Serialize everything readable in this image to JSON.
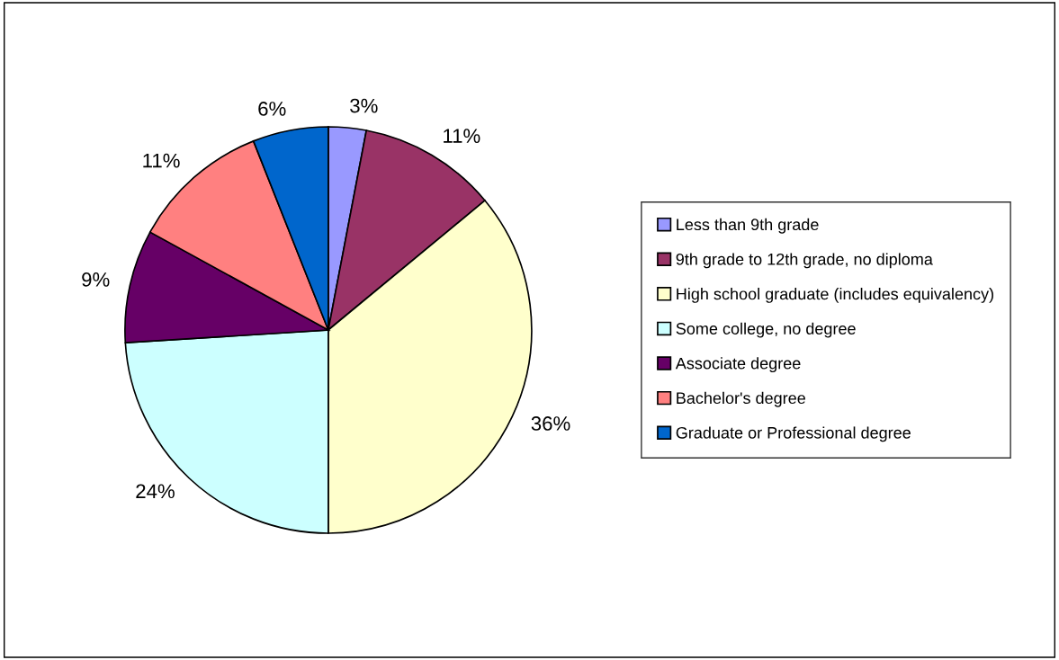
{
  "chart_data": {
    "type": "pie",
    "categories": [
      "Less than 9th grade",
      "9th grade to 12th grade, no diploma",
      "High school graduate (includes equivalency)",
      "Some college, no degree",
      "Associate degree",
      "Bachelor's degree",
      "Graduate or Professional degree"
    ],
    "values": [
      3,
      11,
      36,
      24,
      9,
      11,
      6
    ],
    "colors": [
      "#9999ff",
      "#993366",
      "#ffffcc",
      "#ccffff",
      "#660066",
      "#ff8080",
      "#0066cc"
    ],
    "value_labels": [
      "3%",
      "11%",
      "36%",
      "24%",
      "9%",
      "11%",
      "6%"
    ],
    "legend": "right"
  }
}
